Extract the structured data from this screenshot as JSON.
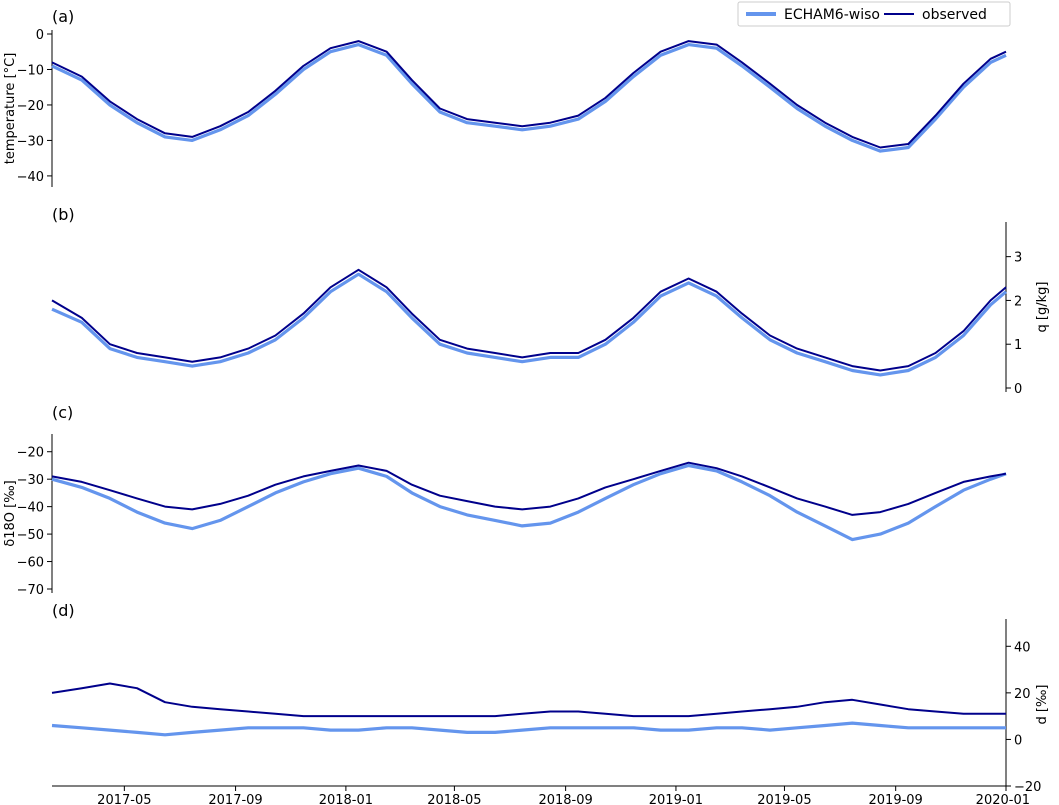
{
  "chart_data": {
    "type": "line",
    "x_axis": {
      "start": "2017-02-10",
      "end": "2020-01-01",
      "tick_labels": [
        "2017-05",
        "2017-09",
        "2018-01",
        "2018-05",
        "2018-09",
        "2019-01",
        "2019-05",
        "2019-09",
        "2020-01"
      ]
    },
    "legend": {
      "placement": "top-right",
      "entries": [
        {
          "label": "ECHAM6-wiso",
          "color": "#6495ED"
        },
        {
          "label": "observed",
          "color": "#00008B"
        }
      ]
    },
    "panels": [
      {
        "letter": "(a)",
        "ylabel": "temperature [°C]",
        "yaxis_side": "left",
        "ylim": [
          -42,
          0
        ],
        "yticks": [
          "0",
          "−10",
          "−20",
          "−30",
          "−40"
        ],
        "series": [
          {
            "name": "ECHAM6-wiso",
            "color": "#6495ED",
            "x": [
              "2017-02-10",
              "2017-03-15",
              "2017-04-15",
              "2017-05-15",
              "2017-06-15",
              "2017-07-15",
              "2017-08-15",
              "2017-09-15",
              "2017-10-15",
              "2017-11-15",
              "2017-12-15",
              "2018-01-15",
              "2018-02-15",
              "2018-03-15",
              "2018-04-15",
              "2018-05-15",
              "2018-06-15",
              "2018-07-15",
              "2018-08-15",
              "2018-09-15",
              "2018-10-15",
              "2018-11-15",
              "2018-12-15",
              "2019-01-15",
              "2019-02-15",
              "2019-03-15",
              "2019-04-15",
              "2019-05-15",
              "2019-06-15",
              "2019-07-15",
              "2019-08-15",
              "2019-09-15",
              "2019-10-15",
              "2019-11-15",
              "2019-12-15",
              "2020-01-01"
            ],
            "y": [
              -9,
              -13,
              -20,
              -25,
              -29,
              -30,
              -27,
              -23,
              -17,
              -10,
              -5,
              -3,
              -6,
              -14,
              -22,
              -25,
              -26,
              -27,
              -26,
              -24,
              -19,
              -12,
              -6,
              -3,
              -4,
              -9,
              -15,
              -21,
              -26,
              -30,
              -33,
              -32,
              -24,
              -15,
              -8,
              -6
            ]
          },
          {
            "name": "observed",
            "color": "#00008B",
            "x": [
              "2017-02-10",
              "2017-03-15",
              "2017-04-15",
              "2017-05-15",
              "2017-06-15",
              "2017-07-15",
              "2017-08-15",
              "2017-09-15",
              "2017-10-15",
              "2017-11-15",
              "2017-12-15",
              "2018-01-15",
              "2018-02-15",
              "2018-03-15",
              "2018-04-15",
              "2018-05-15",
              "2018-06-15",
              "2018-07-15",
              "2018-08-15",
              "2018-09-15",
              "2018-10-15",
              "2018-11-15",
              "2018-12-15",
              "2019-01-15",
              "2019-02-15",
              "2019-03-15",
              "2019-04-15",
              "2019-05-15",
              "2019-06-15",
              "2019-07-15",
              "2019-08-15",
              "2019-09-15",
              "2019-10-15",
              "2019-11-15",
              "2019-12-15",
              "2020-01-01"
            ],
            "y": [
              -8,
              -12,
              -19,
              -24,
              -28,
              -29,
              -26,
              -22,
              -16,
              -9,
              -4,
              -2,
              -5,
              -13,
              -21,
              -24,
              -25,
              -26,
              -25,
              -23,
              -18,
              -11,
              -5,
              -2,
              -3,
              -8,
              -14,
              -20,
              -25,
              -29,
              -32,
              -31,
              -23,
              -14,
              -7,
              -5
            ]
          }
        ]
      },
      {
        "letter": "(b)",
        "ylabel": "q [g/kg]",
        "yaxis_side": "right",
        "ylim": [
          0,
          3.7
        ],
        "yticks": [
          "0",
          "1",
          "2",
          "3"
        ],
        "series": [
          {
            "name": "ECHAM6-wiso",
            "color": "#6495ED",
            "x": [
              "2017-02-10",
              "2017-03-15",
              "2017-04-15",
              "2017-05-15",
              "2017-06-15",
              "2017-07-15",
              "2017-08-15",
              "2017-09-15",
              "2017-10-15",
              "2017-11-15",
              "2017-12-15",
              "2018-01-15",
              "2018-02-15",
              "2018-03-15",
              "2018-04-15",
              "2018-05-15",
              "2018-06-15",
              "2018-07-15",
              "2018-08-15",
              "2018-09-15",
              "2018-10-15",
              "2018-11-15",
              "2018-12-15",
              "2019-01-15",
              "2019-02-15",
              "2019-03-15",
              "2019-04-15",
              "2019-05-15",
              "2019-06-15",
              "2019-07-15",
              "2019-08-15",
              "2019-09-15",
              "2019-10-15",
              "2019-11-15",
              "2019-12-15",
              "2020-01-01"
            ],
            "y": [
              1.8,
              1.5,
              0.9,
              0.7,
              0.6,
              0.5,
              0.6,
              0.8,
              1.1,
              1.6,
              2.2,
              2.6,
              2.2,
              1.6,
              1.0,
              0.8,
              0.7,
              0.6,
              0.7,
              0.7,
              1.0,
              1.5,
              2.1,
              2.4,
              2.1,
              1.6,
              1.1,
              0.8,
              0.6,
              0.4,
              0.3,
              0.4,
              0.7,
              1.2,
              1.9,
              2.2
            ]
          },
          {
            "name": "observed",
            "color": "#00008B",
            "x": [
              "2017-02-10",
              "2017-03-15",
              "2017-04-15",
              "2017-05-15",
              "2017-06-15",
              "2017-07-15",
              "2017-08-15",
              "2017-09-15",
              "2017-10-15",
              "2017-11-15",
              "2017-12-15",
              "2018-01-15",
              "2018-02-15",
              "2018-03-15",
              "2018-04-15",
              "2018-05-15",
              "2018-06-15",
              "2018-07-15",
              "2018-08-15",
              "2018-09-15",
              "2018-10-15",
              "2018-11-15",
              "2018-12-15",
              "2019-01-15",
              "2019-02-15",
              "2019-03-15",
              "2019-04-15",
              "2019-05-15",
              "2019-06-15",
              "2019-07-15",
              "2019-08-15",
              "2019-09-15",
              "2019-10-15",
              "2019-11-15",
              "2019-12-15",
              "2020-01-01"
            ],
            "y": [
              2.0,
              1.6,
              1.0,
              0.8,
              0.7,
              0.6,
              0.7,
              0.9,
              1.2,
              1.7,
              2.3,
              2.7,
              2.3,
              1.7,
              1.1,
              0.9,
              0.8,
              0.7,
              0.8,
              0.8,
              1.1,
              1.6,
              2.2,
              2.5,
              2.2,
              1.7,
              1.2,
              0.9,
              0.7,
              0.5,
              0.4,
              0.5,
              0.8,
              1.3,
              2.0,
              2.3
            ]
          }
        ]
      },
      {
        "letter": "(c)",
        "ylabel": "δ18O [‰]",
        "yaxis_side": "left",
        "ylim": [
          -70,
          -15
        ],
        "yticks": [
          "−20",
          "−30",
          "−40",
          "−50",
          "−60",
          "−70"
        ],
        "series": [
          {
            "name": "ECHAM6-wiso",
            "color": "#6495ED",
            "x": [
              "2017-02-10",
              "2017-03-15",
              "2017-04-15",
              "2017-05-15",
              "2017-06-15",
              "2017-07-15",
              "2017-08-15",
              "2017-09-15",
              "2017-10-15",
              "2017-11-15",
              "2017-12-15",
              "2018-01-15",
              "2018-02-15",
              "2018-03-15",
              "2018-04-15",
              "2018-05-15",
              "2018-06-15",
              "2018-07-15",
              "2018-08-15",
              "2018-09-15",
              "2018-10-15",
              "2018-11-15",
              "2018-12-15",
              "2019-01-15",
              "2019-02-15",
              "2019-03-15",
              "2019-04-15",
              "2019-05-15",
              "2019-06-15",
              "2019-07-15",
              "2019-08-15",
              "2019-09-15",
              "2019-10-15",
              "2019-11-15",
              "2019-12-15",
              "2020-01-01"
            ],
            "y": [
              -30,
              -33,
              -37,
              -42,
              -46,
              -48,
              -45,
              -40,
              -35,
              -31,
              -28,
              -26,
              -29,
              -35,
              -40,
              -43,
              -45,
              -47,
              -46,
              -42,
              -37,
              -32,
              -28,
              -25,
              -27,
              -31,
              -36,
              -42,
              -47,
              -52,
              -50,
              -46,
              -40,
              -34,
              -30,
              -28
            ]
          },
          {
            "name": "observed",
            "color": "#00008B",
            "x": [
              "2017-02-10",
              "2017-03-15",
              "2017-04-15",
              "2017-05-15",
              "2017-06-15",
              "2017-07-15",
              "2017-08-15",
              "2017-09-15",
              "2017-10-15",
              "2017-11-15",
              "2017-12-15",
              "2018-01-15",
              "2018-02-15",
              "2018-03-15",
              "2018-04-15",
              "2018-05-15",
              "2018-06-15",
              "2018-07-15",
              "2018-08-15",
              "2018-09-15",
              "2018-10-15",
              "2018-11-15",
              "2018-12-15",
              "2019-01-15",
              "2019-02-15",
              "2019-03-15",
              "2019-04-15",
              "2019-05-15",
              "2019-06-15",
              "2019-07-15",
              "2019-08-15",
              "2019-09-15",
              "2019-10-15",
              "2019-11-15",
              "2019-12-15",
              "2020-01-01"
            ],
            "y": [
              -29,
              -31,
              -34,
              -37,
              -40,
              -41,
              -39,
              -36,
              -32,
              -29,
              -27,
              -25,
              -27,
              -32,
              -36,
              -38,
              -40,
              -41,
              -40,
              -37,
              -33,
              -30,
              -27,
              -24,
              -26,
              -29,
              -33,
              -37,
              -40,
              -43,
              -42,
              -39,
              -35,
              -31,
              -29,
              -28
            ]
          }
        ]
      },
      {
        "letter": "(d)",
        "ylabel": "d [‰]",
        "yaxis_side": "right",
        "ylim": [
          -20,
          50
        ],
        "yticks": [
          "−20",
          "0",
          "20",
          "40"
        ],
        "series": [
          {
            "name": "ECHAM6-wiso",
            "color": "#6495ED",
            "x": [
              "2017-02-10",
              "2017-03-15",
              "2017-04-15",
              "2017-05-15",
              "2017-06-15",
              "2017-07-15",
              "2017-08-15",
              "2017-09-15",
              "2017-10-15",
              "2017-11-15",
              "2017-12-15",
              "2018-01-15",
              "2018-02-15",
              "2018-03-15",
              "2018-04-15",
              "2018-05-15",
              "2018-06-15",
              "2018-07-15",
              "2018-08-15",
              "2018-09-15",
              "2018-10-15",
              "2018-11-15",
              "2018-12-15",
              "2019-01-15",
              "2019-02-15",
              "2019-03-15",
              "2019-04-15",
              "2019-05-15",
              "2019-06-15",
              "2019-07-15",
              "2019-08-15",
              "2019-09-15",
              "2019-10-15",
              "2019-11-15",
              "2019-12-15",
              "2020-01-01"
            ],
            "y": [
              6,
              5,
              4,
              3,
              2,
              3,
              4,
              5,
              5,
              5,
              4,
              4,
              5,
              5,
              4,
              3,
              3,
              4,
              5,
              5,
              5,
              5,
              4,
              4,
              5,
              5,
              4,
              5,
              6,
              7,
              6,
              5,
              5,
              5,
              5,
              5
            ]
          },
          {
            "name": "observed",
            "color": "#00008B",
            "x": [
              "2017-02-10",
              "2017-03-15",
              "2017-04-15",
              "2017-05-15",
              "2017-06-15",
              "2017-07-15",
              "2017-08-15",
              "2017-09-15",
              "2017-10-15",
              "2017-11-15",
              "2017-12-15",
              "2018-01-15",
              "2018-02-15",
              "2018-03-15",
              "2018-04-15",
              "2018-05-15",
              "2018-06-15",
              "2018-07-15",
              "2018-08-15",
              "2018-09-15",
              "2018-10-15",
              "2018-11-15",
              "2018-12-15",
              "2019-01-15",
              "2019-02-15",
              "2019-03-15",
              "2019-04-15",
              "2019-05-15",
              "2019-06-15",
              "2019-07-15",
              "2019-08-15",
              "2019-09-15",
              "2019-10-15",
              "2019-11-15",
              "2019-12-15",
              "2020-01-01"
            ],
            "y": [
              20,
              22,
              24,
              22,
              16,
              14,
              13,
              12,
              11,
              10,
              10,
              10,
              10,
              10,
              10,
              10,
              10,
              11,
              12,
              12,
              11,
              10,
              10,
              10,
              11,
              12,
              13,
              14,
              16,
              17,
              15,
              13,
              12,
              11,
              11,
              11
            ]
          }
        ]
      }
    ]
  }
}
